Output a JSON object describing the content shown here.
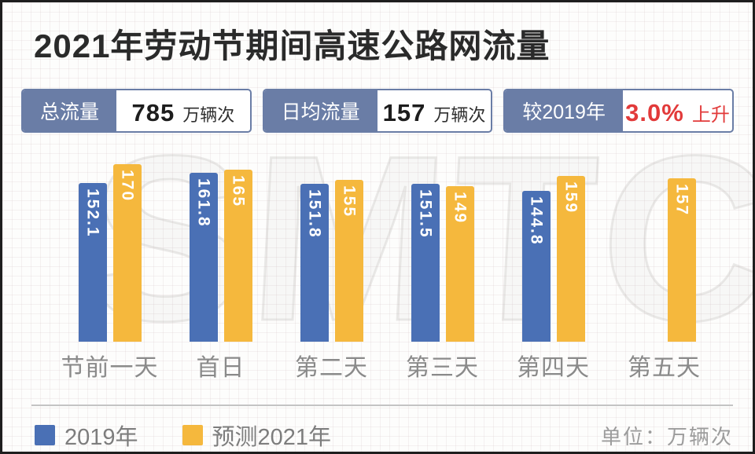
{
  "title": "2021年劳动节期间高速公路网流量",
  "stats": [
    {
      "label": "总流量",
      "value": "785",
      "unit": "万辆次"
    },
    {
      "label": "日均流量",
      "value": "157",
      "unit": "万辆次"
    },
    {
      "label": "较2019年",
      "value": "3.0%",
      "unit": "上升"
    }
  ],
  "watermark": "SMTCC",
  "unit_note": "单位：万辆次",
  "colors": {
    "panel_blue": "#6a7da6",
    "bar_blue": "#4a70b5",
    "bar_yellow": "#f5b83d",
    "alert_red": "#e23a3a",
    "axis_text": "#8a8a8a",
    "legend_text": "#7d7d7d",
    "divider": "#c4c4c4"
  },
  "chart_data": {
    "type": "bar",
    "title": "2021年劳动节期间高速公路网流量",
    "categories": [
      "节前一天",
      "首日",
      "第二天",
      "第三天",
      "第四天",
      "第五天"
    ],
    "series": [
      {
        "name": "2019年",
        "color": "#4a70b5",
        "values": [
          152.1,
          161.8,
          151.8,
          151.5,
          144.8,
          null
        ]
      },
      {
        "name": "预测2021年",
        "color": "#f5b83d",
        "values": [
          170,
          165,
          155,
          149,
          159,
          157
        ]
      }
    ],
    "unit": "万辆次",
    "ylim": [
      0,
      192
    ],
    "grid": false,
    "legend_position": "bottom-left",
    "value_labels": "inside-top, rotated vertical (white)"
  }
}
